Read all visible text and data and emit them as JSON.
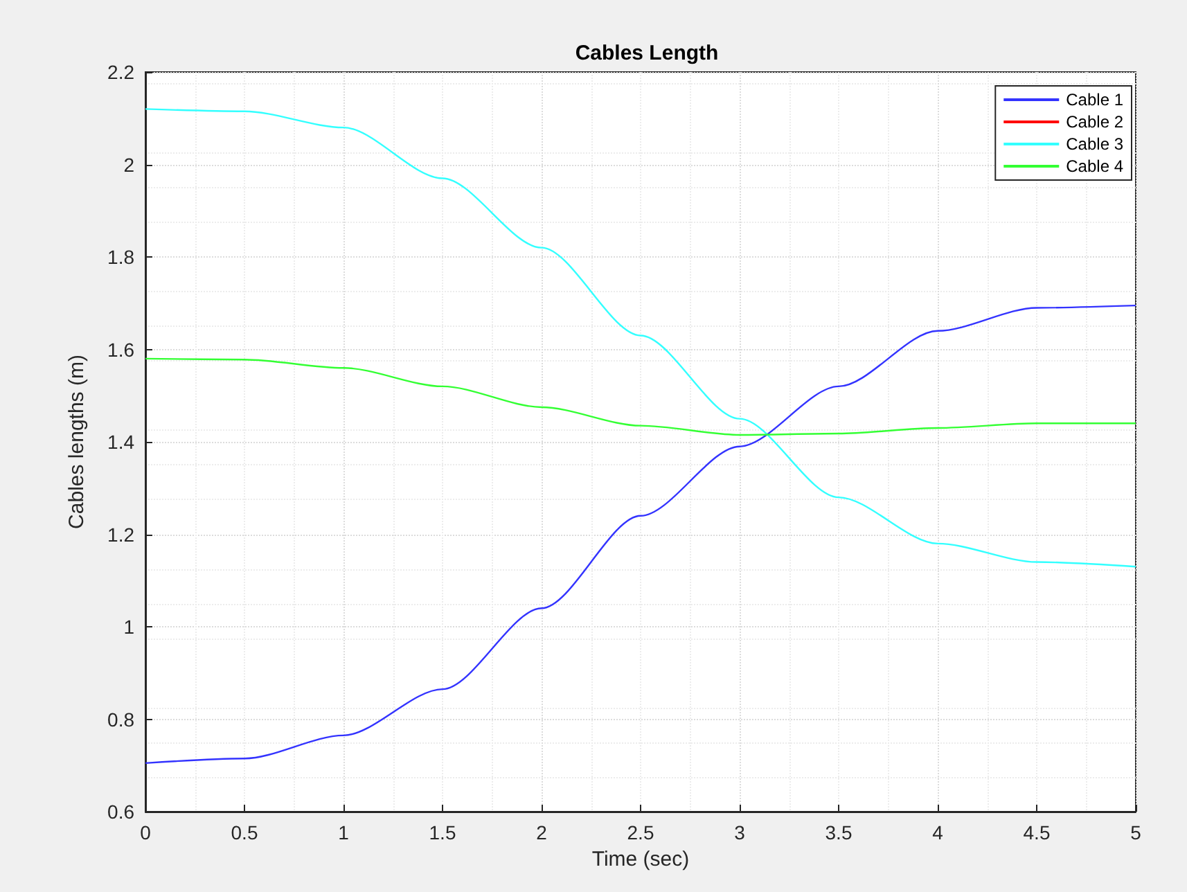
{
  "chart_data": {
    "type": "line",
    "title": "Cables Length",
    "xlabel": "Time (sec)",
    "ylabel": "Cables lengths (m)",
    "x": [
      0,
      0.5,
      1,
      1.5,
      2,
      2.5,
      3,
      3.5,
      4,
      4.5,
      5
    ],
    "series": [
      {
        "name": "Cable 1",
        "color": "#3333ff",
        "values": [
          0.705,
          0.715,
          0.765,
          0.865,
          1.04,
          1.24,
          1.39,
          1.52,
          1.64,
          1.69,
          1.695
        ]
      },
      {
        "name": "Cable 2",
        "color": "#ff0000",
        "values": [
          null,
          null,
          null,
          null,
          null,
          null,
          null,
          null,
          null,
          null,
          null
        ]
      },
      {
        "name": "Cable 3",
        "color": "#33ffff",
        "values": [
          2.12,
          2.115,
          2.08,
          1.97,
          1.82,
          1.63,
          1.45,
          1.28,
          1.18,
          1.14,
          1.13
        ]
      },
      {
        "name": "Cable 4",
        "color": "#33ff33",
        "values": [
          1.58,
          1.578,
          1.56,
          1.52,
          1.475,
          1.435,
          1.415,
          1.418,
          1.43,
          1.44,
          1.44
        ]
      }
    ],
    "xlim": [
      0,
      5
    ],
    "xticks": [
      0,
      0.5,
      1,
      1.5,
      2,
      2.5,
      3,
      3.5,
      4,
      4.5,
      5
    ],
    "ylim": [
      0.6,
      2.2
    ],
    "yticks": [
      0.6,
      0.8,
      1,
      1.2,
      1.4,
      1.6,
      1.8,
      2,
      2.2
    ],
    "grid": true,
    "legend": "top right",
    "marker": "none",
    "line_style": "solid"
  }
}
